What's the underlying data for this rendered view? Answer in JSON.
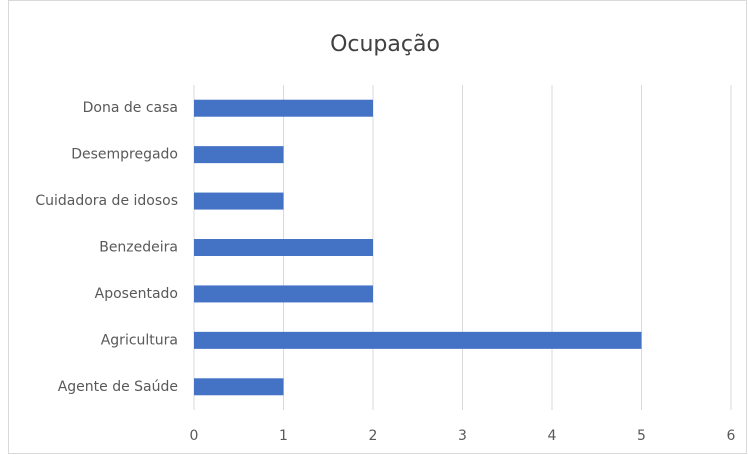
{
  "chart_data": {
    "type": "bar",
    "orientation": "horizontal",
    "title": "Ocupação",
    "categories": [
      "Dona de casa",
      "Desempregado",
      "Cuidadora de idosos",
      "Benzedeira",
      "Aposentado",
      "Agricultura",
      "Agente de Saúde"
    ],
    "values": [
      2,
      1,
      1,
      2,
      2,
      5,
      1
    ],
    "color": "#4472c4",
    "xlim": [
      0,
      6
    ],
    "xticks": [
      0,
      1,
      2,
      3,
      4,
      5,
      6
    ],
    "grid": true
  }
}
